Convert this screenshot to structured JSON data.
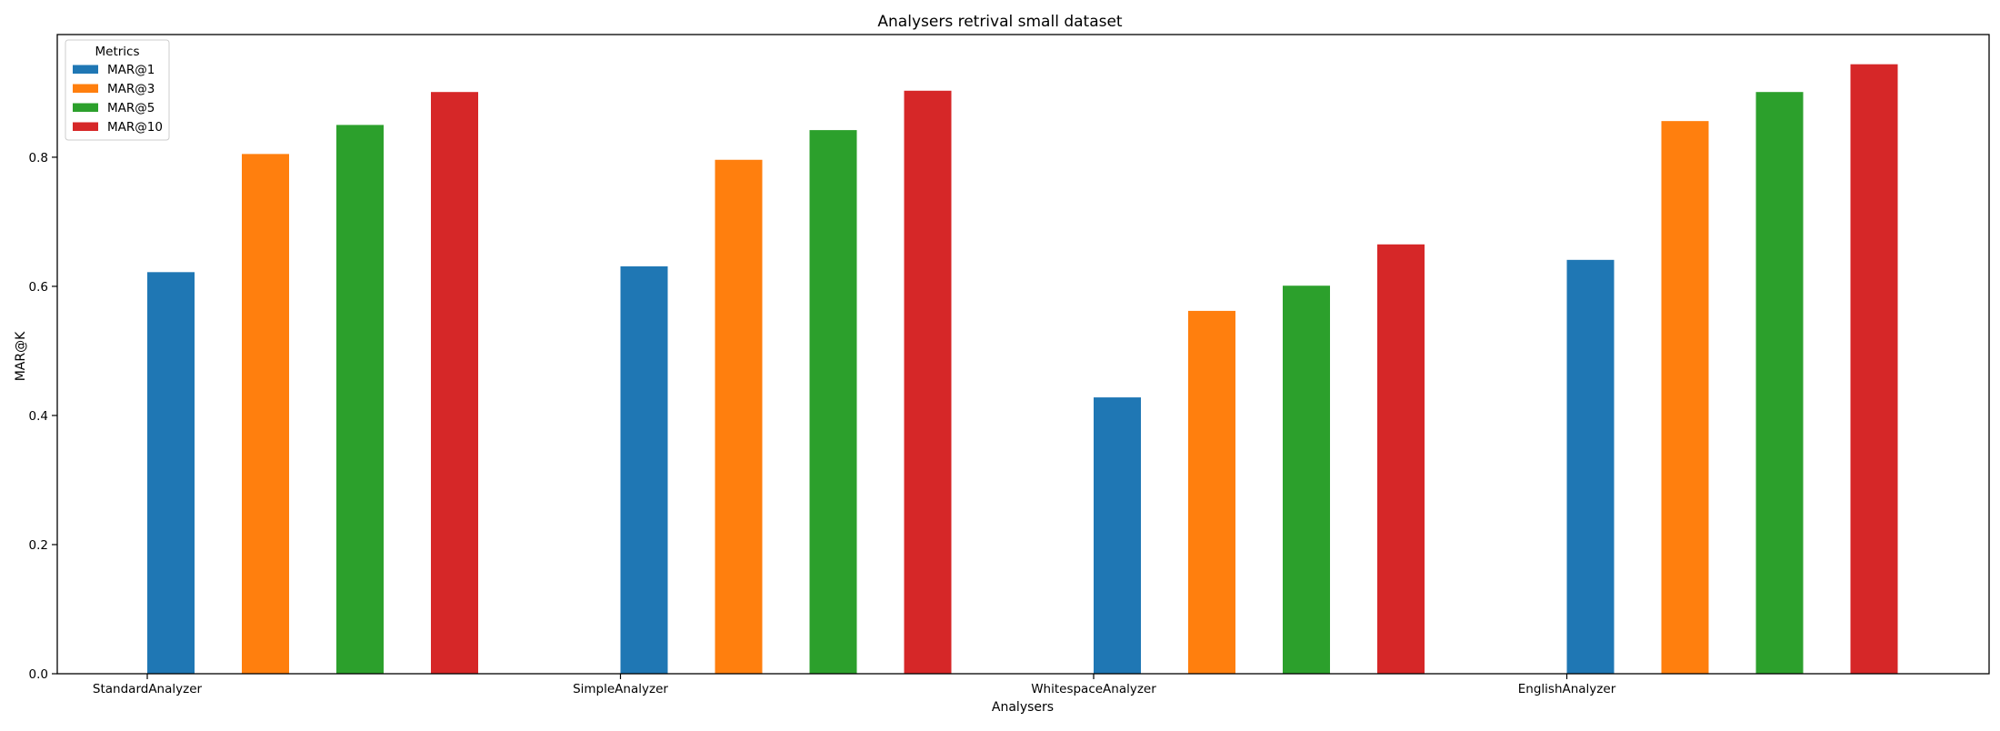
{
  "chart_data": {
    "type": "bar",
    "title": "Analysers retrival small dataset",
    "xlabel": "Analysers",
    "ylabel": "MAR@K",
    "categories": [
      "StandardAnalyzer",
      "SimpleAnalyzer",
      "WhitespaceAnalyzer",
      "EnglishAnalyzer"
    ],
    "series": [
      {
        "name": "MAR@1",
        "color": "#1f77b4",
        "values": [
          0.622,
          0.631,
          0.428,
          0.641
        ]
      },
      {
        "name": "MAR@3",
        "color": "#ff7f0e",
        "values": [
          0.805,
          0.796,
          0.562,
          0.856
        ]
      },
      {
        "name": "MAR@5",
        "color": "#2ca02c",
        "values": [
          0.85,
          0.842,
          0.601,
          0.901
        ]
      },
      {
        "name": "MAR@10",
        "color": "#d62728",
        "values": [
          0.901,
          0.903,
          0.665,
          0.944
        ]
      }
    ],
    "ylim": [
      0,
      0.99
    ],
    "yticks": [
      "0.0",
      "0.2",
      "0.4",
      "0.6",
      "0.8"
    ],
    "legend": {
      "title": "Metrics",
      "placement": "top-left"
    },
    "grid": false
  }
}
